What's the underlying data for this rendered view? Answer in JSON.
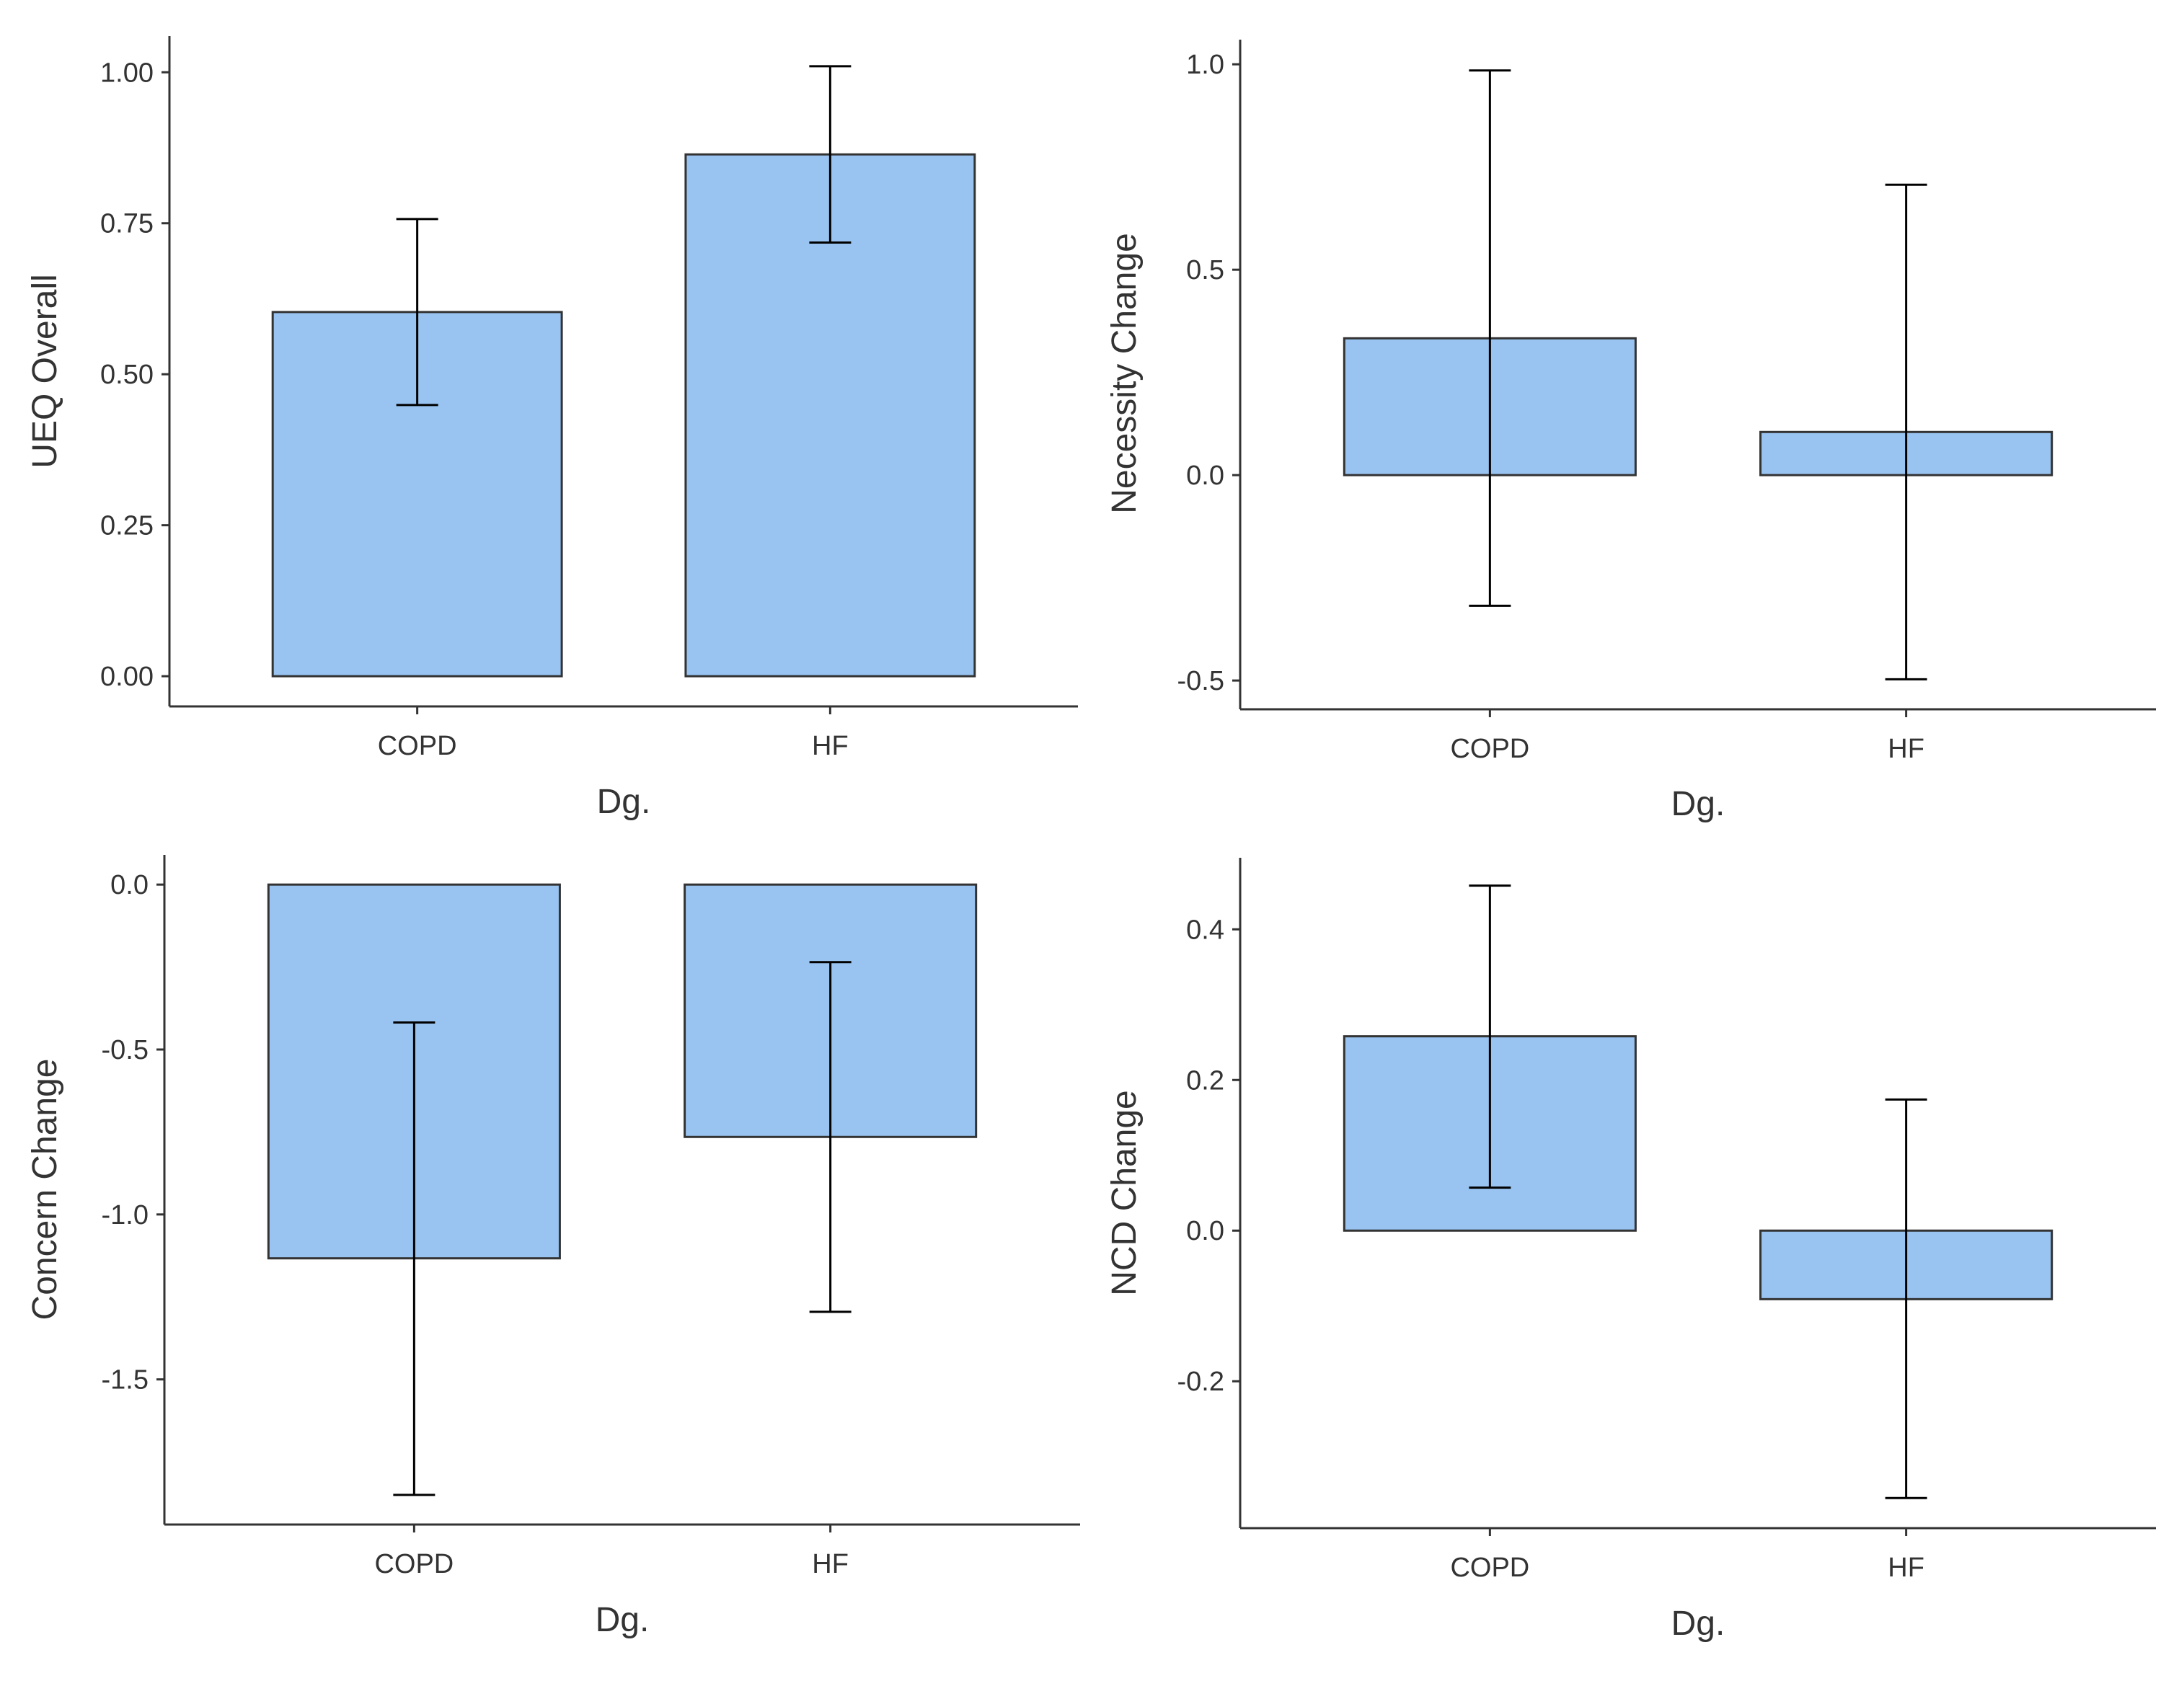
{
  "chart_data": [
    {
      "type": "bar",
      "panel": "top-left",
      "xlabel": "Dg.",
      "ylabel": "UEQ Overall",
      "categories": [
        "COPD",
        "HF"
      ],
      "values": [
        0.603,
        0.864
      ],
      "error_low": [
        0.449,
        0.718
      ],
      "error_high": [
        0.757,
        1.01
      ],
      "ylim": [
        -0.05,
        1.06
      ],
      "yticks": [
        0,
        0.25,
        0.5,
        0.75,
        1.0
      ],
      "ytick_labels": [
        "0.00",
        "0.25",
        "0.50",
        "0.75",
        "1.00"
      ],
      "bar_color": "#99C4F1",
      "grid": false
    },
    {
      "type": "bar",
      "panel": "top-right",
      "xlabel": "Dg.",
      "ylabel": "Necessity Change",
      "categories": [
        "COPD",
        "HF"
      ],
      "values": [
        0.333,
        0.105
      ],
      "error_low": [
        -0.318,
        -0.497
      ],
      "error_high": [
        0.985,
        0.707
      ],
      "ylim": [
        -0.57,
        1.06
      ],
      "yticks": [
        -0.5,
        0,
        0.5,
        1.0
      ],
      "ytick_labels": [
        "-0.5",
        "0.0",
        "0.5",
        "1.0"
      ],
      "bar_color": "#99C4F1",
      "grid": false
    },
    {
      "type": "bar",
      "panel": "bottom-left",
      "xlabel": "Dg.",
      "ylabel": "Concern Change",
      "categories": [
        "COPD",
        "HF"
      ],
      "values": [
        -1.133,
        -0.765
      ],
      "error_low": [
        -1.85,
        -1.295
      ],
      "error_high": [
        -0.418,
        -0.235
      ],
      "ylim": [
        -1.94,
        0.09
      ],
      "yticks": [
        0,
        -0.5,
        -1.0,
        -1.5
      ],
      "ytick_labels": [
        "0.0",
        "-0.5",
        "-1.0",
        "-1.5"
      ],
      "bar_color": "#99C4F1",
      "grid": false
    },
    {
      "type": "bar",
      "panel": "bottom-right",
      "xlabel": "Dg.",
      "ylabel": "NCD Change",
      "categories": [
        "COPD",
        "HF"
      ],
      "values": [
        0.258,
        -0.091
      ],
      "error_low": [
        0.057,
        -0.355
      ],
      "error_high": [
        0.458,
        0.174
      ],
      "ylim": [
        -0.395,
        0.495
      ],
      "yticks": [
        0.4,
        0.2,
        0,
        -0.2
      ],
      "ytick_labels": [
        "0.4",
        "0.2",
        "0.0",
        "-0.2"
      ],
      "bar_color": "#99C4F1",
      "grid": false
    }
  ]
}
